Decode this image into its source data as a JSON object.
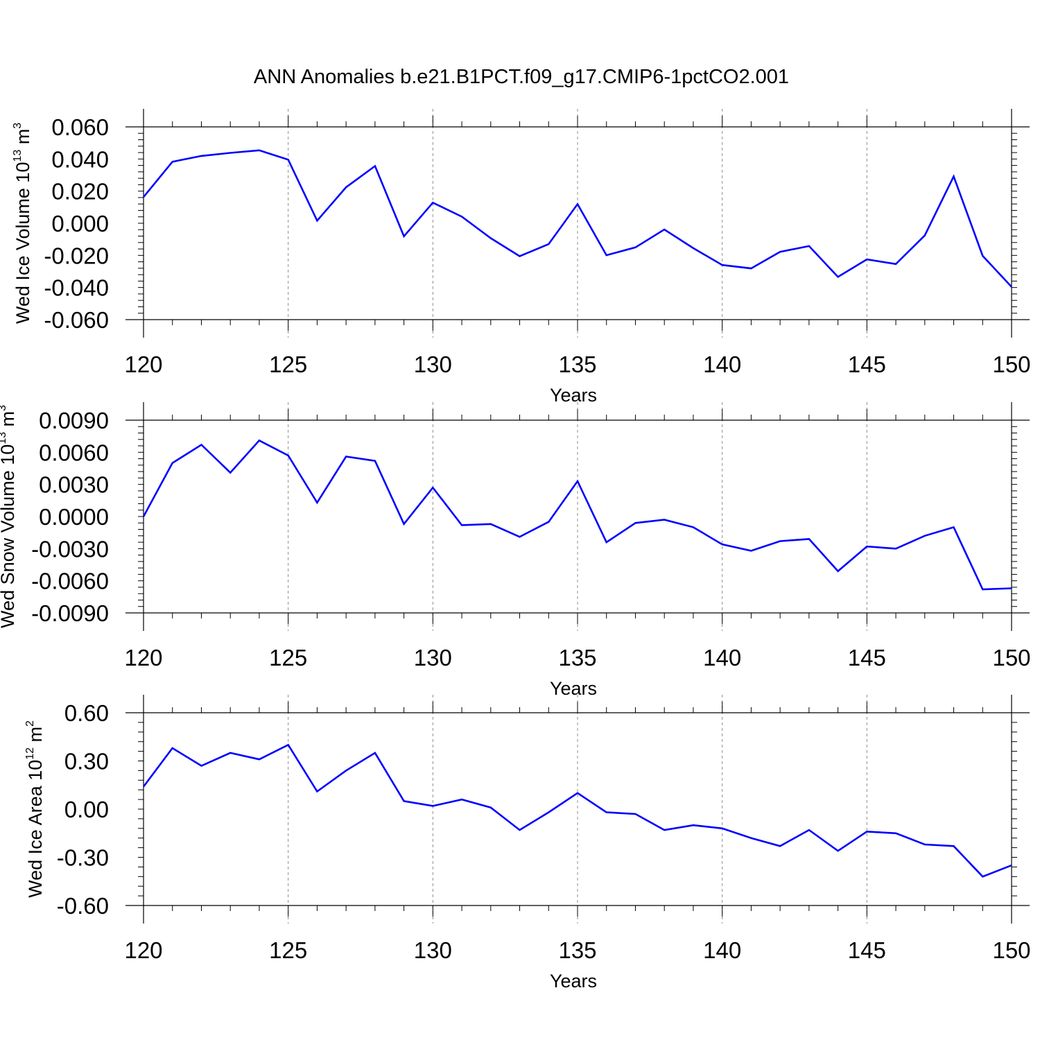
{
  "title": "ANN Anomalies b.e21.B1PCT.f09_g17.CMIP6-1pctCO2.001",
  "colors": {
    "line": "#0000ff",
    "axis": "#000000",
    "grid": "#8c8c8c"
  },
  "chart_data": [
    {
      "type": "line",
      "title": "",
      "xlabel": "Years",
      "ylabel": {
        "prefix": "Wed Ice Volume 10",
        "exp": "13",
        "unit": " m",
        "unit_exp": "3"
      },
      "xlim": [
        120,
        150
      ],
      "ylim": [
        -0.06,
        0.06
      ],
      "xticks": [
        120,
        125,
        130,
        135,
        140,
        145,
        150
      ],
      "xtick_labels": [
        "120",
        "125",
        "130",
        "135",
        "140",
        "145",
        "150"
      ],
      "yticks": [
        0.06,
        0.04,
        0.02,
        0.0,
        -0.02,
        -0.04,
        -0.06
      ],
      "ytick_labels": [
        "0.060",
        "0.040",
        "0.020",
        "0.000",
        "-0.020",
        "-0.040",
        "-0.060"
      ],
      "grid": "vertical dashed at major x ticks",
      "series": [
        {
          "x": [
            120,
            121,
            122,
            123,
            124,
            125,
            126,
            127,
            128,
            129,
            130,
            131,
            132,
            133,
            134,
            135,
            136,
            137,
            138,
            139,
            140,
            141,
            142,
            143,
            144,
            145,
            146,
            147,
            148,
            149,
            150
          ],
          "values": [
            0.0163,
            0.0383,
            0.0419,
            0.0438,
            0.0454,
            0.0396,
            0.0016,
            0.0224,
            0.0356,
            -0.0081,
            0.0128,
            0.0041,
            -0.0093,
            -0.0205,
            -0.013,
            0.0119,
            -0.0199,
            -0.015,
            -0.0039,
            -0.0155,
            -0.026,
            -0.0281,
            -0.0178,
            -0.0142,
            -0.0334,
            -0.0225,
            -0.0254,
            -0.0076,
            0.0292,
            -0.0203,
            -0.0396
          ]
        }
      ]
    },
    {
      "type": "line",
      "title": "",
      "xlabel": "Years",
      "ylabel": {
        "prefix": "Wed Snow Volume 10",
        "exp": "13",
        "unit": " m",
        "unit_exp": "3"
      },
      "xlim": [
        120,
        150
      ],
      "ylim": [
        -0.009,
        0.009
      ],
      "xticks": [
        120,
        125,
        130,
        135,
        140,
        145,
        150
      ],
      "xtick_labels": [
        "120",
        "125",
        "130",
        "135",
        "140",
        "145",
        "150"
      ],
      "yticks": [
        0.009,
        0.006,
        0.003,
        0.0,
        -0.003,
        -0.006,
        -0.009
      ],
      "ytick_labels": [
        "0.0090",
        "0.0060",
        "0.0030",
        "0.0000",
        "-0.0030",
        "-0.0060",
        "-0.0090"
      ],
      "grid": "vertical dashed at major x ticks",
      "series": [
        {
          "x": [
            120,
            121,
            122,
            123,
            124,
            125,
            126,
            127,
            128,
            129,
            130,
            131,
            132,
            133,
            134,
            135,
            136,
            137,
            138,
            139,
            140,
            141,
            142,
            143,
            144,
            145,
            146,
            147,
            148,
            149,
            150
          ],
          "values": [
            0.0,
            0.005,
            0.0067,
            0.0041,
            0.0071,
            0.0057,
            0.0013,
            0.0056,
            0.0052,
            -0.0007,
            0.0027,
            -0.0008,
            -0.0007,
            -0.0019,
            -0.0005,
            0.0033,
            -0.0024,
            -0.0006,
            -0.0003,
            -0.001,
            -0.0026,
            -0.0032,
            -0.0023,
            -0.0021,
            -0.0051,
            -0.0028,
            -0.003,
            -0.0018,
            -0.001,
            -0.0068,
            -0.0067
          ]
        }
      ]
    },
    {
      "type": "line",
      "title": "",
      "xlabel": "Years",
      "ylabel": {
        "prefix": "Wed Ice Area 10",
        "exp": "12",
        "unit": " m",
        "unit_exp": "2"
      },
      "xlim": [
        120,
        150
      ],
      "ylim": [
        -0.6,
        0.6
      ],
      "xticks": [
        120,
        125,
        130,
        135,
        140,
        145,
        150
      ],
      "xtick_labels": [
        "120",
        "125",
        "130",
        "135",
        "140",
        "145",
        "150"
      ],
      "yticks": [
        0.6,
        0.3,
        0.0,
        -0.3,
        -0.6
      ],
      "ytick_labels": [
        "0.60",
        "0.30",
        "0.00",
        "-0.30",
        "-0.60"
      ],
      "grid": "vertical dashed at major x ticks",
      "series": [
        {
          "x": [
            120,
            121,
            122,
            123,
            124,
            125,
            126,
            127,
            128,
            129,
            130,
            131,
            132,
            133,
            134,
            135,
            136,
            137,
            138,
            139,
            140,
            141,
            142,
            143,
            144,
            145,
            146,
            147,
            148,
            149,
            150
          ],
          "values": [
            0.14,
            0.38,
            0.27,
            0.35,
            0.31,
            0.4,
            0.11,
            0.24,
            0.35,
            0.05,
            0.02,
            0.06,
            0.01,
            -0.13,
            -0.02,
            0.1,
            -0.02,
            -0.03,
            -0.13,
            -0.1,
            -0.12,
            -0.18,
            -0.23,
            -0.13,
            -0.26,
            -0.14,
            -0.15,
            -0.22,
            -0.23,
            -0.42,
            -0.35
          ]
        }
      ]
    }
  ]
}
